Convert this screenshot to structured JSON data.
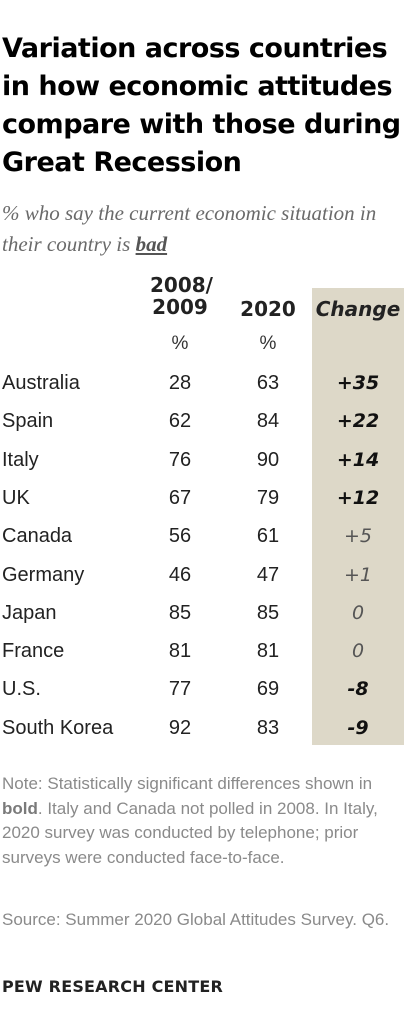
{
  "title": "Variation across countries in how economic attitudes compare with those during Great Recession",
  "subtitle": {
    "prefix": "% who say the current economic situation in their country is ",
    "emphasis": "bad"
  },
  "colors": {
    "change_column_bg": "#ddd8c8",
    "note_text": "#8a8a8a"
  },
  "chart_data": {
    "type": "table",
    "columns": [
      {
        "label_line1": "2008/",
        "label_line2": "2009",
        "unit": "%"
      },
      {
        "label": "2020",
        "unit": "%"
      },
      {
        "label": "Change"
      }
    ],
    "rows": [
      {
        "country": "Australia",
        "y2008_2009": "28",
        "y2020": "63",
        "change": "+35",
        "significant": true
      },
      {
        "country": "Spain",
        "y2008_2009": "62",
        "y2020": "84",
        "change": "+22",
        "significant": true
      },
      {
        "country": "Italy",
        "y2008_2009": "76",
        "y2020": "90",
        "change": "+14",
        "significant": true
      },
      {
        "country": "UK",
        "y2008_2009": "67",
        "y2020": "79",
        "change": "+12",
        "significant": true
      },
      {
        "country": "Canada",
        "y2008_2009": "56",
        "y2020": "61",
        "change": "+5",
        "significant": false
      },
      {
        "country": "Germany",
        "y2008_2009": "46",
        "y2020": "47",
        "change": "+1",
        "significant": false
      },
      {
        "country": "Japan",
        "y2008_2009": "85",
        "y2020": "85",
        "change": "0",
        "significant": false
      },
      {
        "country": "France",
        "y2008_2009": "81",
        "y2020": "81",
        "change": "0",
        "significant": false
      },
      {
        "country": "U.S.",
        "y2008_2009": "77",
        "y2020": "69",
        "change": "-8",
        "significant": true
      },
      {
        "country": "South Korea",
        "y2008_2009": "92",
        "y2020": "83",
        "change": "-9",
        "significant": true
      }
    ]
  },
  "note": {
    "prefix": "Note: Statistically significant differences shown in ",
    "bold_word": "bold",
    "suffix": ". Italy and Canada not polled in 2008. In Italy, 2020 survey was conducted by telephone; prior surveys were conducted face-to-face."
  },
  "source": "Source: Summer 2020 Global Attitudes Survey. Q6.",
  "brand": "PEW RESEARCH CENTER"
}
